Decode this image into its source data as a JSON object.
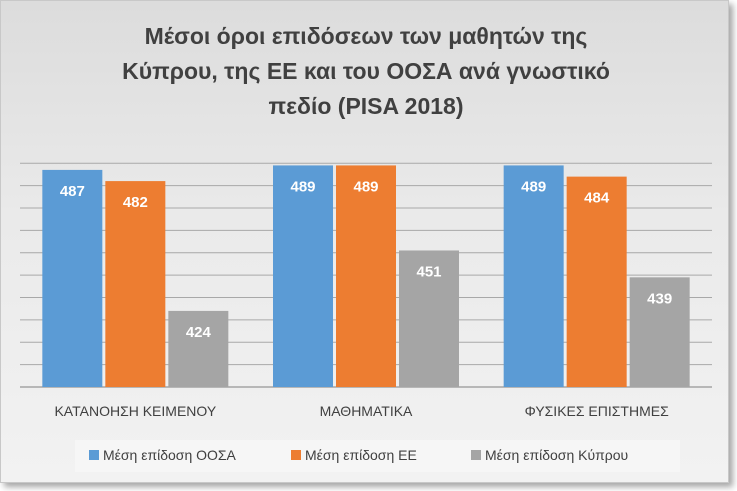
{
  "chart_data": {
    "type": "bar",
    "title_lines": [
      "Μέσοι όροι επιδόσεων των μαθητών της",
      "Κύπρου, της ΕΕ και του ΟΟΣΑ ανά γνωστικό",
      "πεδίο (PISA 2018)"
    ],
    "categories": [
      "ΚΑΤΑΝΟΗΣΗ ΚΕΙΜΕΝΟΥ",
      "ΜΑΘΗΜΑΤΙΚΑ",
      "ΦΥΣΙΚΕΣ ΕΠΙΣΤΗΜΕΣ"
    ],
    "series": [
      {
        "name": "Μέση επίδοση ΟΟΣΑ",
        "color": "#5b9bd5",
        "values": [
          487,
          489,
          489
        ]
      },
      {
        "name": "Μέση επίδοση ΕΕ",
        "color": "#ed7d31",
        "values": [
          482,
          489,
          484
        ]
      },
      {
        "name": "Μέση επίδοση Κύπρου",
        "color": "#a5a5a5",
        "values": [
          424,
          451,
          439
        ]
      }
    ],
    "ylim": [
      390,
      495
    ],
    "grid": true,
    "legend_position": "bottom"
  }
}
